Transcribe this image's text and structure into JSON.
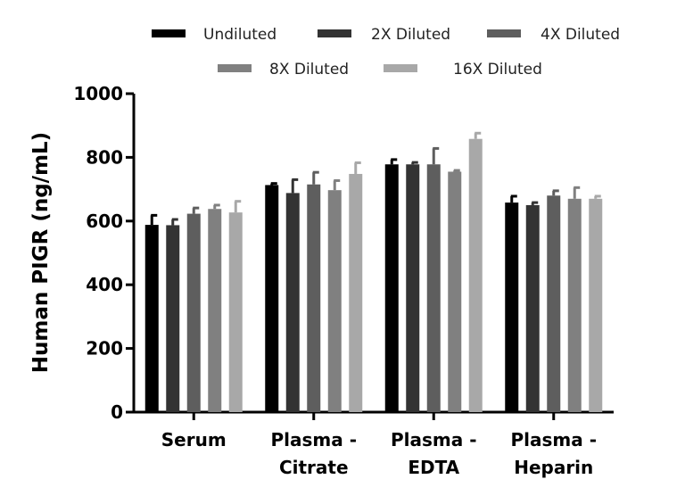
{
  "chart_data": {
    "type": "bar",
    "title": "",
    "xlabel": "",
    "ylabel": "Human PIGR (ng/mL)",
    "ylim": [
      0,
      1000
    ],
    "yticks": [
      0,
      200,
      400,
      600,
      800,
      1000
    ],
    "categories": [
      [
        "Serum"
      ],
      [
        "Plasma -",
        "Citrate"
      ],
      [
        "Plasma -",
        "EDTA"
      ],
      [
        "Plasma -",
        "Heparin"
      ]
    ],
    "legend_position": "top",
    "grid": false,
    "series": [
      {
        "name": "Undiluted",
        "color": "#000000",
        "values": [
          588,
          713,
          778,
          658
        ],
        "errors": [
          30,
          5,
          15,
          20
        ]
      },
      {
        "name": "2X Diluted",
        "color": "#333333",
        "values": [
          587,
          688,
          778,
          650
        ],
        "errors": [
          18,
          42,
          6,
          8
        ]
      },
      {
        "name": "4X Diluted",
        "color": "#5e5e5e",
        "values": [
          623,
          715,
          778,
          680
        ],
        "errors": [
          18,
          38,
          50,
          15
        ]
      },
      {
        "name": "8X Diluted",
        "color": "#808080",
        "values": [
          638,
          697,
          755,
          670
        ],
        "errors": [
          12,
          30,
          4,
          35
        ]
      },
      {
        "name": "16X Diluted",
        "color": "#a8a8a8",
        "values": [
          627,
          748,
          858,
          670
        ],
        "errors": [
          35,
          35,
          18,
          8
        ]
      }
    ]
  }
}
